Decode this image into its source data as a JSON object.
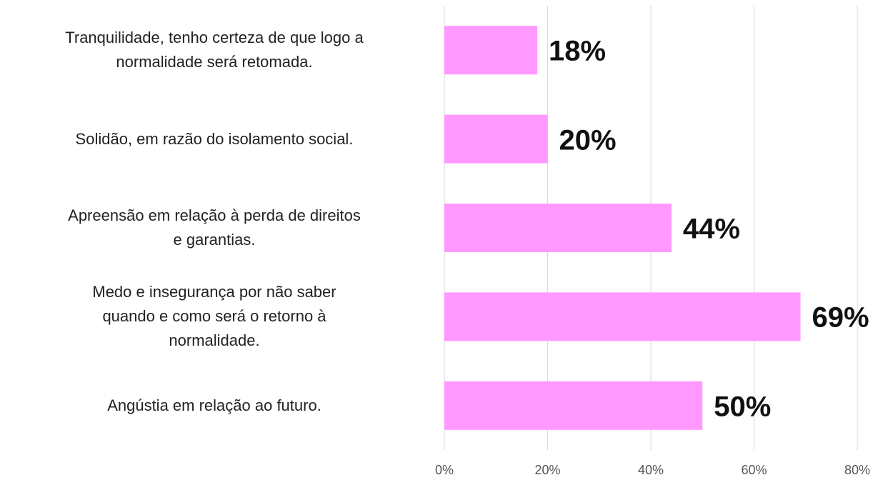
{
  "chart_data": {
    "type": "barh",
    "categories": [
      "Tranquilidade, tenho certeza de que logo a\nnormalidade será retomada.",
      "Solidão, em razão do isolamento social.",
      "Apreensão em relação à perda de direitos\ne garantias.",
      "Medo e insegurança por não saber\nquando e como será o retorno à\nnormalidade.",
      "Angústia em relação ao futuro."
    ],
    "values": [
      18,
      20,
      44,
      69,
      50
    ],
    "value_labels": [
      "18%",
      "20%",
      "44%",
      "69%",
      "50%"
    ],
    "color": "#ff99ff",
    "xlim": [
      0,
      80
    ],
    "xticks": [
      {
        "value": 0,
        "label": "0%"
      },
      {
        "value": 20,
        "label": "20%"
      },
      {
        "value": 40,
        "label": "40%"
      },
      {
        "value": 60,
        "label": "60%"
      },
      {
        "value": 80,
        "label": "80%"
      }
    ],
    "grid": true
  }
}
